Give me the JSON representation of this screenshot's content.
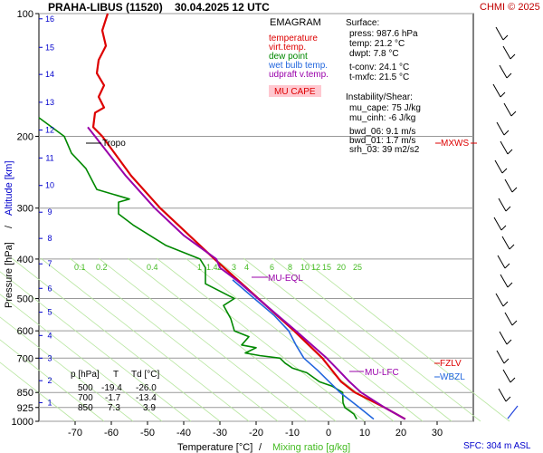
{
  "header": {
    "title": "PRAHA-LIBUS (11520)",
    "datetime": "30.04.2025 12 UTC",
    "copyright": "CHMI © 2025"
  },
  "legend": {
    "title": "EMAGRAM",
    "items": [
      {
        "label": "temperature",
        "color": "#dd0000"
      },
      {
        "label": "virt.temp.",
        "color": "#dd0000"
      },
      {
        "label": "dew point",
        "color": "#008800"
      },
      {
        "label": "wet bulb temp.",
        "color": "#2266dd"
      },
      {
        "label": "udpraft v.temp.",
        "color": "#9900aa"
      }
    ],
    "mucape_label": "MU CAPE",
    "mucape_bg": "#ffc8d0"
  },
  "surface": {
    "title": "Surface:",
    "press": "press: 987.6 hPa",
    "temp": "temp: 21.2 °C",
    "dwpt": "dwpt: 7.8 °C",
    "tconv": "t-conv: 24.1 °C",
    "tmxfc": "t-mxfc: 21.5 °C",
    "temp_color": "#dd0000",
    "dwpt_color": "#008800"
  },
  "instability": {
    "title": "Instability/Shear:",
    "mu_cape": "mu_cape: 75 J/kg",
    "mu_cinh": "mu_cinh: -6 J/kg",
    "bwd_06": "bwd_06: 9.1 m/s",
    "bwd_01": "bwd_01: 1.7 m/s",
    "srh_03": "srh_03: 39 m2/s2"
  },
  "table": {
    "headers": [
      "p [hPa]",
      "T",
      "Td [°C]"
    ],
    "rows": [
      [
        "500",
        "-19.4",
        "-26.0"
      ],
      [
        "700",
        "-1.7",
        "-13.4"
      ],
      [
        "850",
        "7.3",
        "3.9"
      ]
    ]
  },
  "footer": {
    "sfc": "SFC: 304 m ASL"
  },
  "chart_data": {
    "type": "line",
    "title": "EMAGRAM",
    "xlabel": "Temperature [°C]",
    "xlabel2": "Mixing ratio [g/kg]",
    "ylabel": "Pressure [hPa]",
    "ylabel2": "Altitude [km]",
    "xlim": [
      -80,
      40
    ],
    "ylim": [
      1000,
      100
    ],
    "y_scale": "log",
    "x_ticks": [
      -70,
      -60,
      -50,
      -40,
      -30,
      -20,
      -10,
      0,
      10,
      20,
      30
    ],
    "p_ticks": [
      100,
      200,
      300,
      400,
      500,
      600,
      700,
      850,
      925,
      1000
    ],
    "alt_ticks": [
      1,
      2,
      3,
      4,
      5,
      6,
      7,
      8,
      9,
      10,
      11,
      12,
      13,
      14,
      15,
      16
    ],
    "alt_pressures": [
      900,
      795,
      700,
      616,
      540,
      472,
      411,
      356,
      307,
      264,
      226,
      193,
      165,
      141,
      121,
      103
    ],
    "mixing_ratio_labels": [
      "0.1",
      "0.2",
      "0.4",
      "1",
      "1.4",
      "2",
      "3",
      "4",
      "6",
      "8",
      "10",
      "12",
      "15",
      "20",
      "25"
    ],
    "mixing_ratio_label_temps": [
      -72,
      -66,
      -52,
      -38,
      -35.5,
      -32.5,
      -28.5,
      -25,
      -18,
      -13,
      -9.5,
      -6.5,
      -3.5,
      0.5,
      5
    ],
    "mixing_ratio_label_pressure": 380,
    "series": [
      {
        "name": "temperature",
        "color": "#dd0000",
        "p": [
          988,
          925,
          850,
          800,
          700,
          600,
          500,
          400,
          300,
          250,
          200,
          190,
          175,
          170,
          160,
          150,
          140,
          130,
          120,
          110,
          100
        ],
        "t": [
          21.2,
          15.5,
          7.3,
          3.5,
          -1.7,
          -9.5,
          -19.4,
          -31.5,
          -46.5,
          -54.5,
          -62.5,
          -65,
          -64.5,
          -62,
          -63.5,
          -62,
          -64,
          -63.5,
          -61.5,
          -62.5,
          -61
        ]
      },
      {
        "name": "dew point",
        "color": "#008800",
        "p": [
          988,
          960,
          925,
          900,
          850,
          820,
          800,
          760,
          740,
          720,
          700,
          690,
          680,
          660,
          650,
          620,
          600,
          560,
          520,
          500,
          460,
          420,
          400,
          370,
          330,
          310,
          290,
          285,
          270,
          240,
          220,
          200,
          180
        ],
        "t": [
          7.8,
          7,
          4.5,
          4,
          3.9,
          1,
          -2.5,
          -6,
          -10,
          -12,
          -13.4,
          -19,
          -23,
          -20,
          -24,
          -22,
          -26,
          -27,
          -29,
          -26,
          -34,
          -34,
          -35.5,
          -45,
          -54,
          -58,
          -58,
          -55,
          -64,
          -67,
          -71,
          -73,
          -80
        ]
      },
      {
        "name": "wet bulb temp.",
        "color": "#2266dd",
        "p": [
          988,
          925,
          850,
          800,
          750,
          700,
          650,
          600,
          550,
          500,
          450
        ],
        "t": [
          12.5,
          8.5,
          3.2,
          0.2,
          -3,
          -6.8,
          -9,
          -11,
          -15,
          -20.5,
          -26.5
        ]
      },
      {
        "name": "udpraft v.temp.",
        "color": "#9900aa",
        "p": [
          988,
          925,
          850,
          800,
          750,
          700,
          600,
          500,
          450,
          420,
          400,
          350,
          300,
          250,
          200,
          190
        ],
        "t": [
          21.2,
          15.5,
          9,
          5.8,
          2.8,
          -0.5,
          -9,
          -19.5,
          -25.5,
          -30,
          -31,
          -40,
          -48,
          -56,
          -64.5,
          -66.5
        ]
      }
    ],
    "annotations": [
      {
        "label": "Tropo",
        "p": 212,
        "t": -66.5,
        "color": "#000000"
      },
      {
        "label": "MU-EQL",
        "p": 440,
        "t": -23,
        "color": "#9900aa"
      },
      {
        "label": "MU-LFC",
        "p": 750,
        "t": 5.5,
        "color": "#9900aa"
      },
      {
        "label": "FZLV",
        "p": 718,
        "t": 25,
        "color": "#dd0000"
      },
      {
        "label": "WBZL",
        "p": 772,
        "t": 24,
        "color": "#2266dd"
      },
      {
        "label": "MXWS",
        "p": 205,
        "t": 27,
        "color": "#dd0000"
      }
    ],
    "hodo_note": "wind barbs column at right"
  }
}
